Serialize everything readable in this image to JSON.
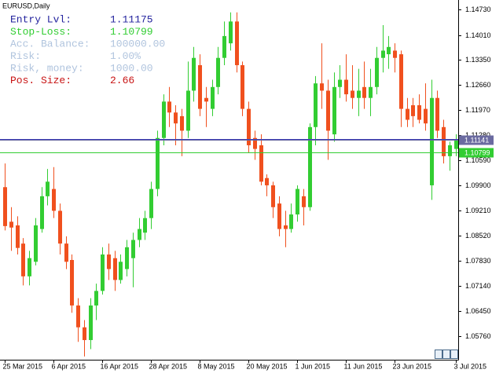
{
  "chart_data": {
    "type": "candlestick",
    "title": "EURUSD,Daily",
    "categories": [
      "25 Mar 2015",
      null,
      null,
      null,
      null,
      null,
      null,
      null,
      "6 Apr 2015",
      null,
      null,
      null,
      null,
      null,
      null,
      null,
      "16 Apr 2015",
      null,
      null,
      null,
      null,
      null,
      null,
      null,
      "28 Apr 2015",
      null,
      null,
      null,
      null,
      null,
      null,
      null,
      "8 May 2015",
      null,
      null,
      null,
      null,
      null,
      null,
      null,
      "20 May 2015",
      null,
      null,
      null,
      null,
      null,
      null,
      null,
      "1 Jun 2015",
      null,
      null,
      null,
      null,
      null,
      null,
      null,
      "11 Jun 2015",
      null,
      null,
      null,
      null,
      null,
      null,
      null,
      "23 Jun 2015",
      null,
      null,
      null,
      null,
      null,
      null,
      null,
      null,
      null,
      "3 Jul 2015"
    ],
    "open": [
      1.0985,
      1.089,
      1.088,
      1.083,
      1.074,
      1.078,
      1.087,
      1.096,
      1.098,
      1.092,
      1.083,
      1.0785,
      1.066,
      1.06,
      1.0565,
      1.066,
      1.07,
      1.08,
      1.079,
      1.073,
      1.076,
      1.079,
      1.084,
      1.086,
      1.09,
      1.098,
      1.112,
      1.122,
      1.119,
      1.118,
      1.114,
      1.125,
      1.132,
      1.123,
      1.12,
      1.126,
      1.134,
      1.138,
      1.144,
      1.132,
      1.12,
      1.112,
      1.11,
      1.101,
      1.099,
      1.094,
      1.088,
      1.087,
      1.091,
      1.096,
      1.093,
      1.115,
      1.127,
      1.125,
      1.113,
      1.126,
      1.128,
      1.125,
      1.123,
      1.126,
      1.123,
      1.126,
      1.134,
      1.135,
      1.136,
      1.135,
      1.12,
      1.121,
      1.121,
      1.12,
      1.099,
      1.123,
      1.115,
      1.107,
      1.109
    ],
    "high": [
      1.105,
      1.093,
      1.0905,
      1.0845,
      1.081,
      1.09,
      1.0985,
      1.1035,
      1.104,
      1.094,
      1.085,
      1.08,
      1.068,
      1.062,
      1.068,
      1.072,
      1.082,
      1.083,
      1.081,
      1.08,
      1.084,
      1.086,
      1.09,
      1.092,
      1.1,
      1.114,
      1.124,
      1.126,
      1.121,
      1.12,
      1.133,
      1.137,
      1.135,
      1.126,
      1.128,
      1.137,
      1.144,
      1.1465,
      1.1465,
      1.133,
      1.122,
      1.114,
      1.113,
      1.102,
      1.1,
      1.096,
      1.092,
      1.094,
      1.099,
      1.098,
      1.116,
      1.129,
      1.138,
      1.128,
      1.13,
      1.132,
      1.135,
      1.132,
      1.131,
      1.133,
      1.131,
      1.137,
      1.143,
      1.14,
      1.138,
      1.136,
      1.123,
      1.123,
      1.124,
      1.127,
      1.128,
      1.125,
      1.117,
      1.111,
      1.113
    ],
    "low": [
      1.0866,
      1.081,
      1.08,
      1.0715,
      1.0715,
      1.077,
      1.086,
      1.0935,
      1.09,
      1.08,
      1.076,
      1.064,
      1.056,
      1.052,
      1.054,
      1.062,
      1.069,
      1.073,
      1.07,
      1.072,
      1.074,
      1.071,
      1.082,
      1.084,
      1.087,
      1.096,
      1.11,
      1.115,
      1.11,
      1.107,
      1.112,
      1.122,
      1.118,
      1.115,
      1.118,
      1.124,
      1.132,
      1.136,
      1.13,
      1.118,
      1.108,
      1.106,
      1.099,
      1.096,
      1.09,
      1.085,
      1.082,
      1.086,
      1.089,
      1.088,
      1.092,
      1.11,
      1.12,
      1.106,
      1.111,
      1.123,
      1.122,
      1.12,
      1.118,
      1.12,
      1.118,
      1.124,
      1.13,
      1.131,
      1.13,
      1.115,
      1.115,
      1.115,
      1.116,
      1.114,
      1.095,
      1.112,
      1.105,
      1.103,
      1.107
    ],
    "close": [
      1.0878,
      1.0874,
      1.0818,
      1.074,
      1.079,
      1.088,
      1.096,
      1.1,
      1.092,
      1.083,
      1.078,
      1.066,
      1.06,
      1.0565,
      1.066,
      1.07,
      1.08,
      1.076,
      1.073,
      1.078,
      1.082,
      1.084,
      1.087,
      1.09,
      1.098,
      1.112,
      1.122,
      1.119,
      1.116,
      1.114,
      1.125,
      1.134,
      1.12,
      1.122,
      1.126,
      1.134,
      1.14,
      1.144,
      1.132,
      1.12,
      1.11,
      1.109,
      1.1,
      1.099,
      1.093,
      1.087,
      1.087,
      1.091,
      1.098,
      1.093,
      1.115,
      1.127,
      1.125,
      1.114,
      1.126,
      1.128,
      1.124,
      1.123,
      1.125,
      1.123,
      1.126,
      1.134,
      1.136,
      1.137,
      1.134,
      1.12,
      1.117,
      1.118,
      1.117,
      1.116,
      1.123,
      1.114,
      1.107,
      1.11,
      1.1116
    ],
    "up_color": "#32cd32",
    "down_color": "#f0501e",
    "ylim": [
      1.0511,
      1.1499
    ],
    "yticks": [
      {
        "value": 1.0576,
        "label": "1.05760"
      },
      {
        "value": 1.0645,
        "label": "1.06450"
      },
      {
        "value": 1.0714,
        "label": "1.07140"
      },
      {
        "value": 1.0783,
        "label": "1.07830"
      },
      {
        "value": 1.0852,
        "label": "1.08520"
      },
      {
        "value": 1.0921,
        "label": "1.09210"
      },
      {
        "value": 1.099,
        "label": "1.09900"
      },
      {
        "value": 1.1059,
        "label": "1.10590"
      },
      {
        "value": 1.1128,
        "label": "1.11280"
      },
      {
        "value": 1.1197,
        "label": "1.11970"
      },
      {
        "value": 1.1266,
        "label": "1.12660"
      },
      {
        "value": 1.1335,
        "label": "1.13350"
      },
      {
        "value": 1.1401,
        "label": "1.14010"
      },
      {
        "value": 1.1473,
        "label": "1.14730"
      }
    ],
    "hlines": [
      {
        "value": 1.11175,
        "color": "#3c3cb4"
      },
      {
        "value": 1.11141,
        "color": "#6a6aa0",
        "tag": true
      },
      {
        "value": 1.10799,
        "color": "#32cd32",
        "tag": true
      }
    ],
    "info_panel": [
      {
        "label": "Entry Lvl:",
        "value": "1.11175",
        "color": "#23239e"
      },
      {
        "label": "Stop-Loss:",
        "value": "1.10799",
        "color": "#32cd32"
      },
      {
        "label": "Acc. Balance:",
        "value": "100000.00",
        "color": "#b0c4de"
      },
      {
        "label": "Risk:",
        "value": "1.00%",
        "color": "#b0c4de"
      },
      {
        "label": "Risk, money:",
        "value": "1000.00",
        "color": "#b0c4de"
      },
      {
        "label": "Pos. Size:",
        "value": "2.66",
        "color": "#c81414"
      }
    ]
  }
}
